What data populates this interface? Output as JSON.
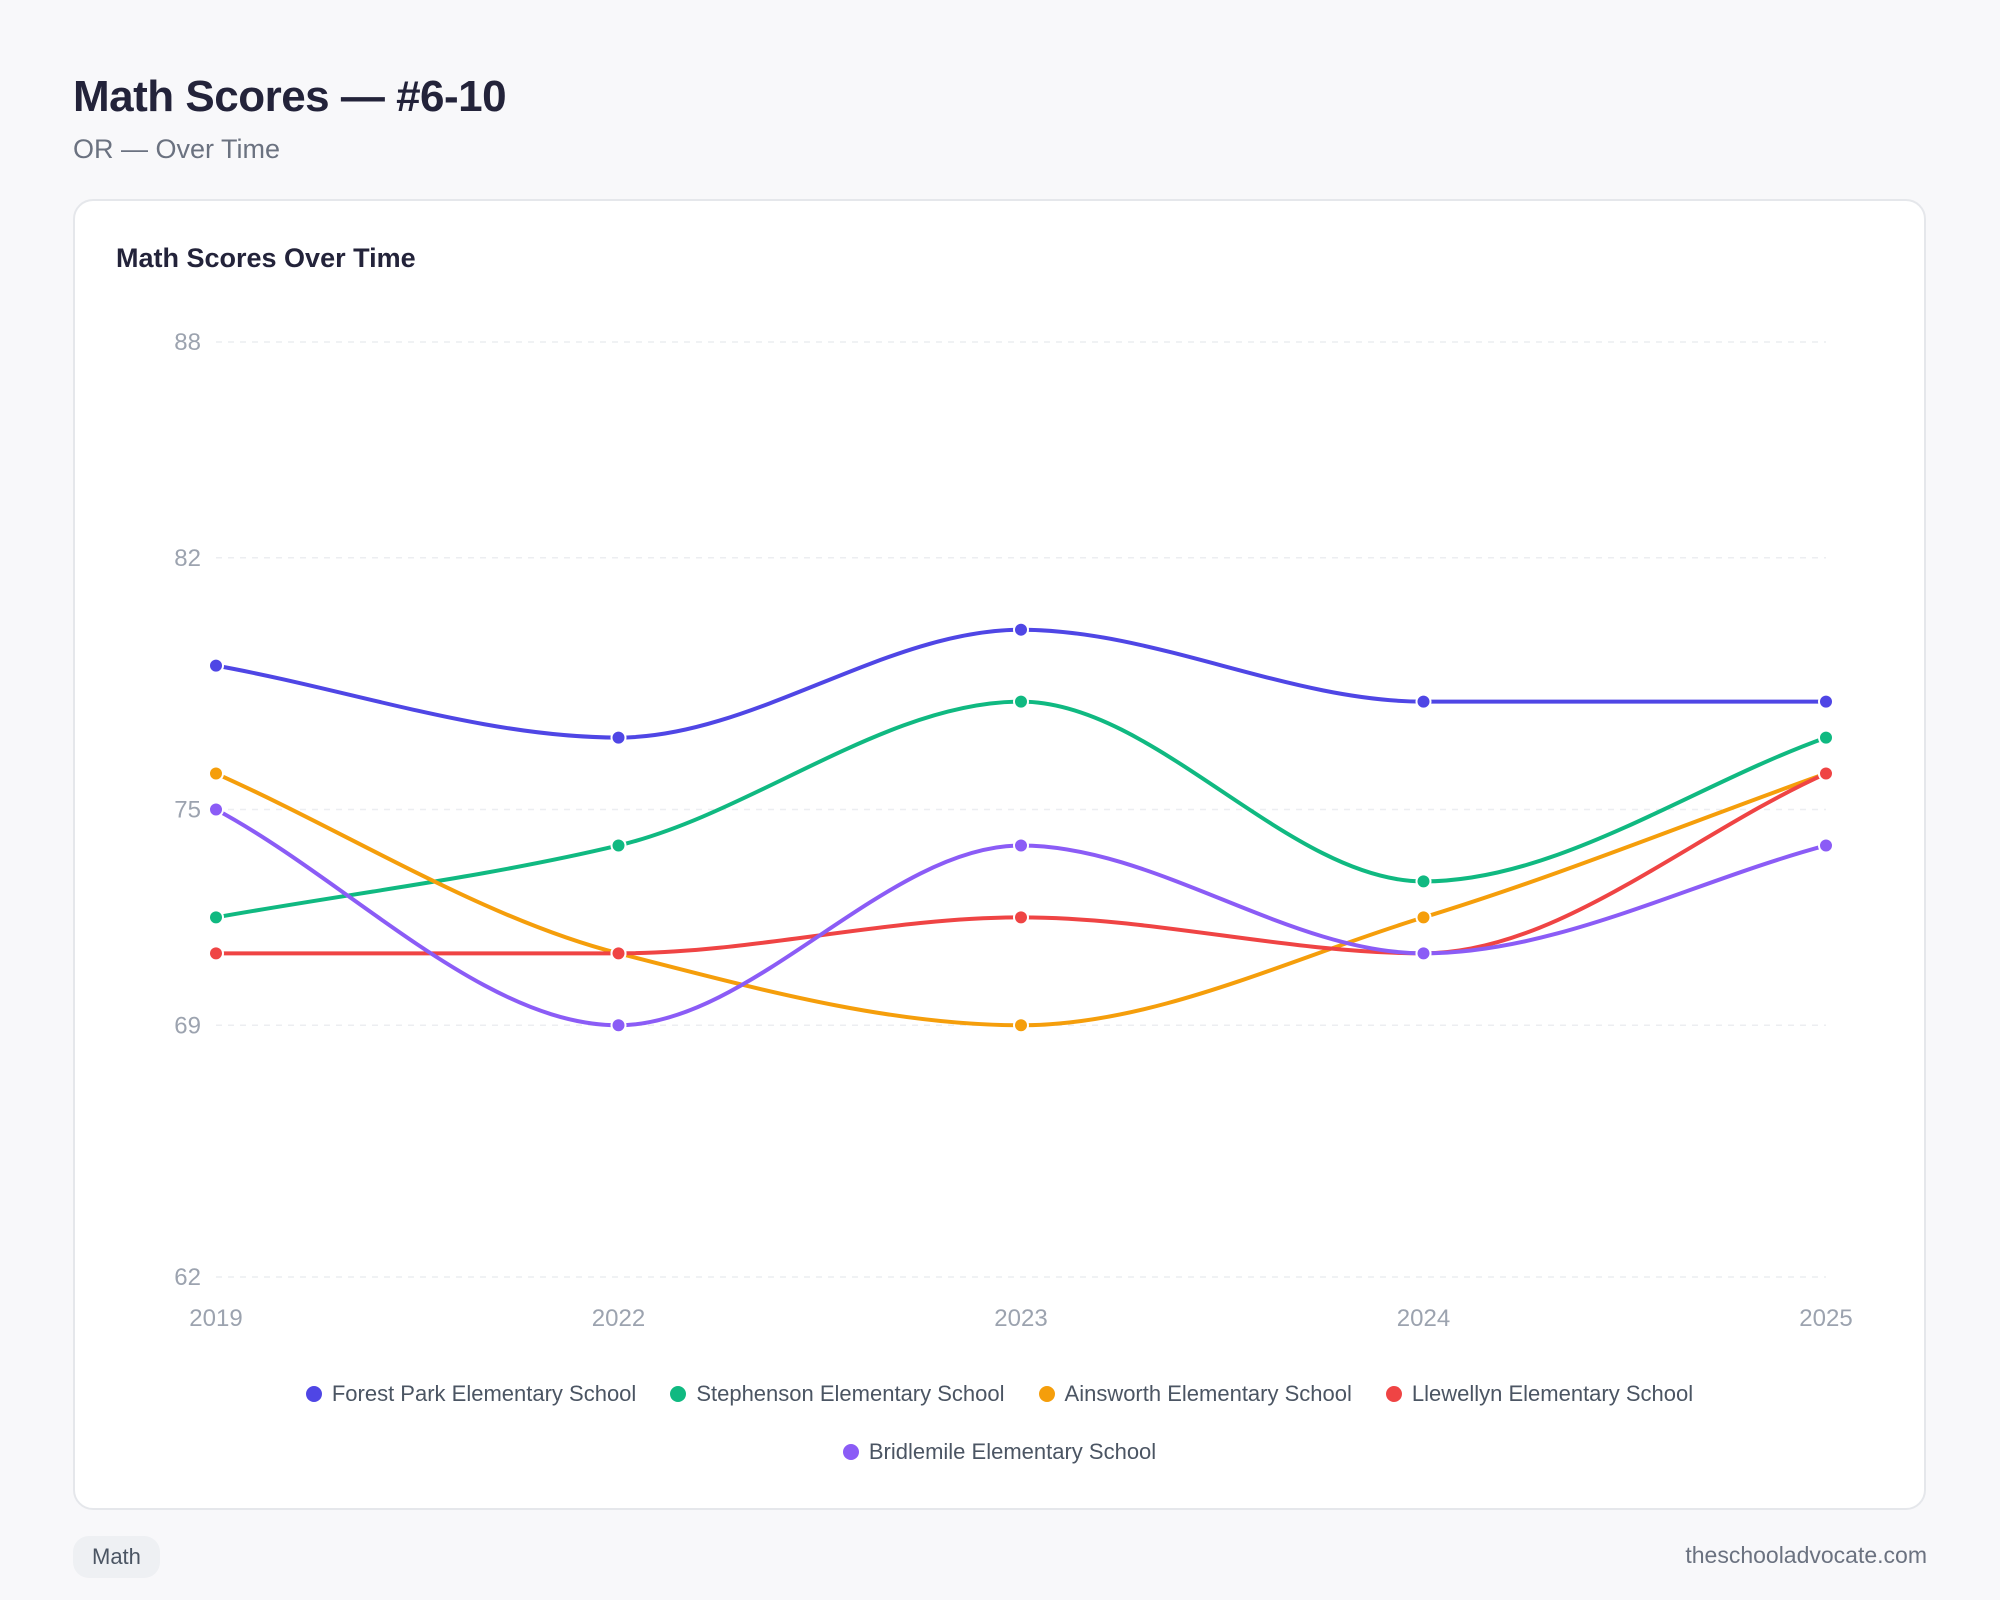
{
  "header": {
    "title": "Math Scores — #6-10",
    "subtitle": "OR — Over Time"
  },
  "card": {
    "title": "Math Scores Over Time"
  },
  "chart_data": {
    "type": "line",
    "title": "Math Scores Over Time",
    "xlabel": "",
    "ylabel": "",
    "categories": [
      "2019",
      "2022",
      "2023",
      "2024",
      "2025"
    ],
    "ylim": [
      62,
      88
    ],
    "yticks": [
      62,
      69,
      75,
      82,
      88
    ],
    "grid": true,
    "legend_position": "bottom",
    "series": [
      {
        "name": "Forest Park Elementary School",
        "color": "#4f46e5",
        "values": [
          79,
          77,
          80,
          78,
          78
        ]
      },
      {
        "name": "Stephenson Elementary School",
        "color": "#10b981",
        "values": [
          72,
          74,
          78,
          73,
          77
        ]
      },
      {
        "name": "Ainsworth Elementary School",
        "color": "#f59e0b",
        "values": [
          76,
          71,
          69,
          72,
          76
        ]
      },
      {
        "name": "Llewellyn Elementary School",
        "color": "#ef4444",
        "values": [
          71,
          71,
          72,
          71,
          76
        ]
      },
      {
        "name": "Bridlemile Elementary School",
        "color": "#8b5cf6",
        "values": [
          75,
          69,
          74,
          71,
          74
        ]
      }
    ]
  },
  "footer": {
    "tag": "Math",
    "source": "theschooladvocate.com"
  }
}
